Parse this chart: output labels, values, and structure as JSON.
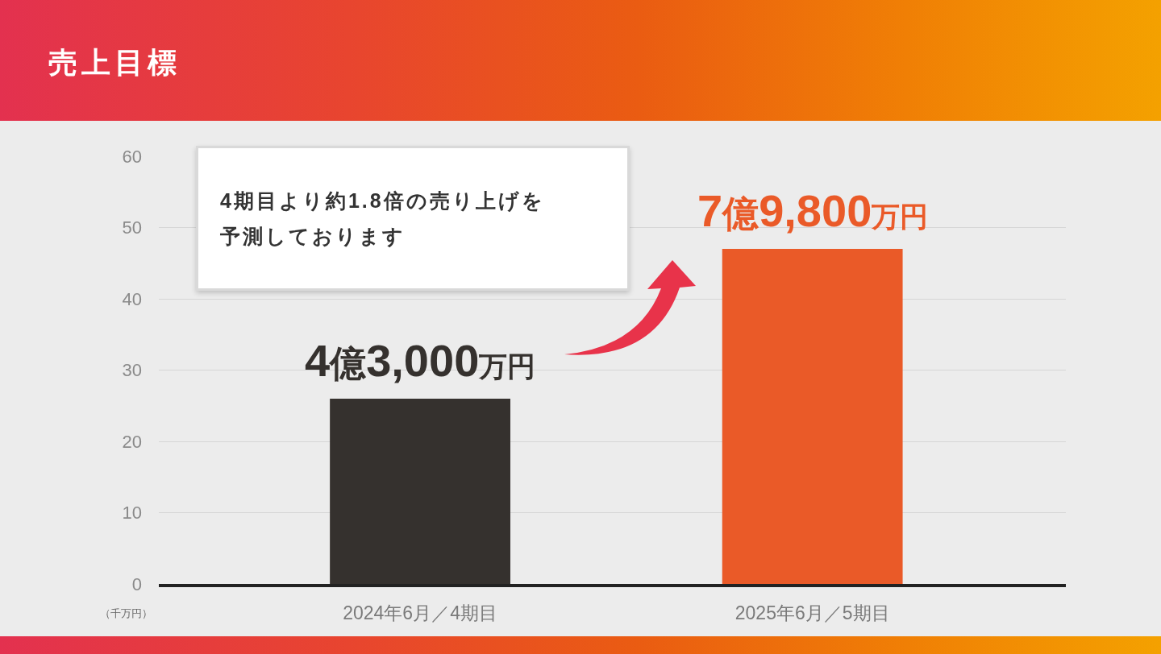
{
  "chart_data": {
    "type": "bar",
    "title": "売上目標",
    "ylabel": "（千万円）",
    "categories": [
      "2024年6月／4期目",
      "2025年6月／5期目"
    ],
    "values": [
      26,
      47
    ],
    "colors": [
      "#35312e",
      "#ea5a28"
    ],
    "ylim": [
      0,
      60
    ],
    "yticks": [
      0,
      10,
      20,
      30,
      40,
      50,
      60
    ],
    "grid": "y",
    "annotations": [
      "4期目より約1.8倍の売り上げを予測しております",
      {
        "text": "4億3,000万円",
        "x": "2024年6月／4期目",
        "y": 26
      },
      {
        "text": "7億9,800万円",
        "x": "2025年6月／5期目",
        "y": 47
      }
    ]
  }
}
